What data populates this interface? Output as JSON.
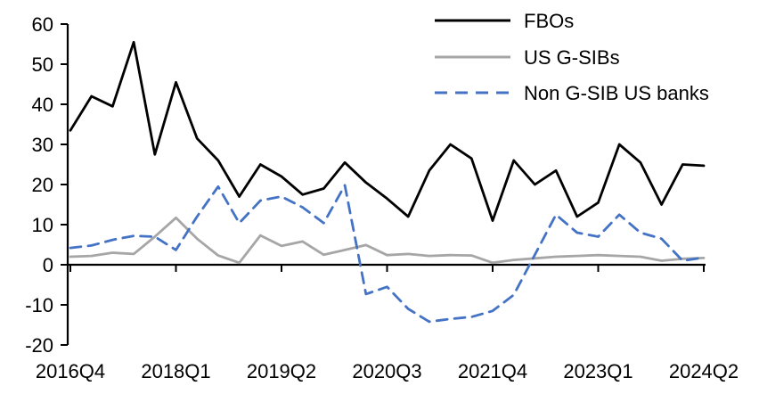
{
  "chart_data": {
    "type": "line",
    "title": "",
    "xlabel": "",
    "ylabel": "",
    "ylim": [
      -20,
      60
    ],
    "y_ticks": [
      -20,
      -10,
      0,
      10,
      20,
      30,
      40,
      50,
      60
    ],
    "grid": false,
    "legend_position": "top-right",
    "categories": [
      "2016Q4",
      "2017Q1",
      "2017Q2",
      "2017Q3",
      "2017Q4",
      "2018Q1",
      "2018Q2",
      "2018Q3",
      "2018Q4",
      "2019Q1",
      "2019Q2",
      "2019Q3",
      "2019Q4",
      "2020Q1",
      "2020Q2",
      "2020Q3",
      "2020Q4",
      "2021Q1",
      "2021Q2",
      "2021Q3",
      "2021Q4",
      "2022Q1",
      "2022Q2",
      "2022Q3",
      "2022Q4",
      "2023Q1",
      "2023Q2",
      "2023Q3",
      "2023Q4",
      "2024Q1",
      "2024Q2"
    ],
    "x_tick_indices": [
      0,
      5,
      10,
      15,
      20,
      25,
      30
    ],
    "x_tick_labels": [
      "2016Q4",
      "2018Q1",
      "2019Q2",
      "2020Q3",
      "2021Q4",
      "2023Q1",
      "2024Q2"
    ],
    "series": [
      {
        "name": "FBOs",
        "color": "#000000",
        "style": "solid",
        "values": [
          33.5,
          42,
          39.5,
          55.5,
          27.5,
          45.5,
          31.5,
          26,
          17,
          25,
          22,
          17.5,
          19,
          25.5,
          20.5,
          16.5,
          12,
          23.5,
          30,
          26.5,
          11,
          26,
          20,
          23.5,
          12,
          15.5,
          30,
          25.5,
          15,
          25,
          24.7
        ]
      },
      {
        "name": "US G-SIBs",
        "color": "#a6a6a6",
        "style": "solid",
        "values": [
          2,
          2.2,
          3,
          2.7,
          7,
          11.7,
          6.5,
          2.3,
          0.5,
          7.3,
          4.7,
          5.8,
          2.5,
          3.7,
          4.9,
          2.4,
          2.7,
          2.2,
          2.4,
          2.3,
          0.5,
          1.2,
          1.6,
          2,
          2.2,
          2.4,
          2.2,
          2,
          1,
          1.5,
          1.7
        ]
      },
      {
        "name": "Non G-SIB US banks",
        "color": "#4472c4",
        "style": "dashed",
        "values": [
          4.2,
          4.8,
          6.2,
          7.2,
          7,
          3.7,
          12,
          19.5,
          10.4,
          16,
          17,
          14.3,
          10.4,
          19.8,
          -7.3,
          -5.5,
          -11,
          -14.2,
          -13.5,
          -13,
          -11.5,
          -7.5,
          2.5,
          12.5,
          8,
          7,
          12.5,
          8,
          6.5,
          1,
          1.8
        ]
      }
    ]
  }
}
